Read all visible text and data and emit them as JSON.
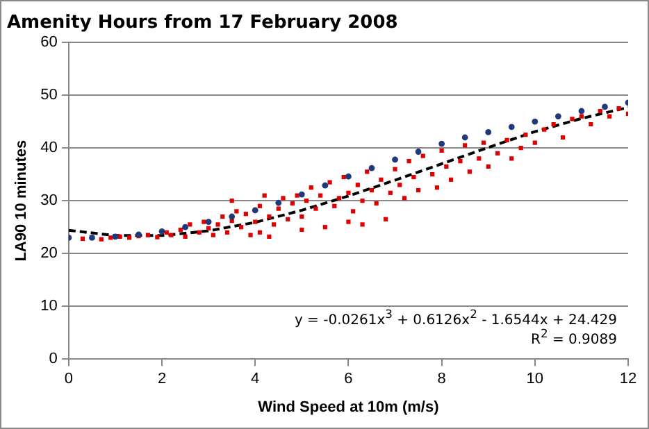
{
  "chart_data": {
    "type": "scatter",
    "title": "Amenity Hours from 17 February 2008",
    "xlabel": "Wind Speed at 10m (m/s)",
    "ylabel": "LA90 10 minutes",
    "xlim": [
      0,
      12
    ],
    "xticks": [
      0,
      2,
      4,
      6,
      8,
      10,
      12
    ],
    "ylim": [
      0,
      60
    ],
    "yticks": [
      0,
      10,
      20,
      30,
      40,
      50,
      60
    ],
    "grid": "y",
    "legend": false,
    "annotations": [
      "y = -0.0261x$^{3}$ + 0.6126x$^{2}$ - 1.6544x + 24.429",
      "R$^{2}$ = 0.9089"
    ],
    "series": [
      {
        "color": "#1f3a7a",
        "marker": "circle",
        "x": [
          0,
          0.5,
          1,
          1.5,
          2,
          2.5,
          3,
          3.5,
          4,
          4.5,
          5,
          5.5,
          6,
          6.5,
          7,
          7.5,
          8,
          8.5,
          9,
          9.5,
          10,
          10.5,
          11,
          11.5,
          12
        ],
        "values": [
          23,
          23,
          23.2,
          23.6,
          24.2,
          25,
          26,
          27,
          28.2,
          29.6,
          31.2,
          32.9,
          34.6,
          36.2,
          37.8,
          39.3,
          40.8,
          42,
          43,
          44,
          45,
          46,
          47,
          47.8,
          48.6
        ]
      },
      {
        "color": "#e00000",
        "marker": "square",
        "x": [
          0.3,
          0.5,
          0.7,
          0.9,
          1.1,
          1.3,
          1.5,
          1.7,
          1.9,
          2.1,
          2.2,
          2.4,
          2.5,
          2.6,
          2.8,
          2.9,
          3.0,
          3.1,
          3.2,
          3.3,
          3.4,
          3.5,
          3.5,
          3.6,
          3.7,
          3.8,
          3.9,
          4.0,
          4.1,
          4.1,
          4.2,
          4.3,
          4.3,
          4.4,
          4.5,
          4.6,
          4.7,
          4.8,
          4.9,
          5.0,
          5.0,
          5.1,
          5.2,
          5.3,
          5.4,
          5.5,
          5.6,
          5.7,
          5.8,
          5.9,
          6.0,
          6.0,
          6.1,
          6.2,
          6.3,
          6.3,
          6.4,
          6.5,
          6.6,
          6.7,
          6.8,
          6.9,
          7.0,
          7.1,
          7.2,
          7.3,
          7.4,
          7.5,
          7.6,
          7.8,
          7.9,
          8.0,
          8.1,
          8.2,
          8.4,
          8.5,
          8.6,
          8.8,
          8.9,
          9.0,
          9.2,
          9.4,
          9.5,
          9.7,
          9.8,
          10.0,
          10.2,
          10.4,
          10.6,
          10.8,
          11.0,
          11.2,
          11.4,
          11.6,
          11.8,
          12.0
        ],
        "values": [
          22.8,
          23,
          22.7,
          23,
          23.2,
          23,
          23.3,
          23.5,
          23.1,
          24,
          23.5,
          24.5,
          23.2,
          25.5,
          24,
          26,
          24.8,
          23.5,
          25.5,
          27,
          24,
          26.2,
          30,
          28,
          25,
          27.5,
          23.5,
          26,
          29,
          24,
          31,
          27,
          23.2,
          25.5,
          28.5,
          30.5,
          26.5,
          29.5,
          31,
          27,
          24.5,
          30,
          32.5,
          28.5,
          31,
          25,
          33.5,
          29,
          30.5,
          34.5,
          26,
          31.5,
          28,
          33,
          30,
          25.5,
          35.5,
          32,
          29.5,
          34,
          26.5,
          31.5,
          36,
          33,
          30.5,
          37.5,
          34.5,
          32,
          38.5,
          35,
          32.5,
          39.5,
          36.5,
          34,
          37.5,
          40.5,
          35.5,
          38,
          41,
          36.5,
          39,
          41.5,
          38,
          40,
          42.5,
          41,
          43.5,
          44.5,
          42,
          45.5,
          46,
          44.5,
          47,
          46,
          47.5,
          46.5
        ]
      },
      {
        "type": "line",
        "color": "#000000",
        "marker": "none",
        "line_style": "dashed",
        "x": [
          0,
          1,
          2,
          3,
          4,
          5,
          6,
          7,
          8,
          9,
          10,
          11,
          12
        ],
        "values": [
          24.4,
          23.4,
          23.4,
          24.3,
          25.9,
          28.2,
          30.9,
          33.9,
          37.0,
          40.1,
          43.1,
          45.6,
          47.7
        ]
      }
    ]
  }
}
